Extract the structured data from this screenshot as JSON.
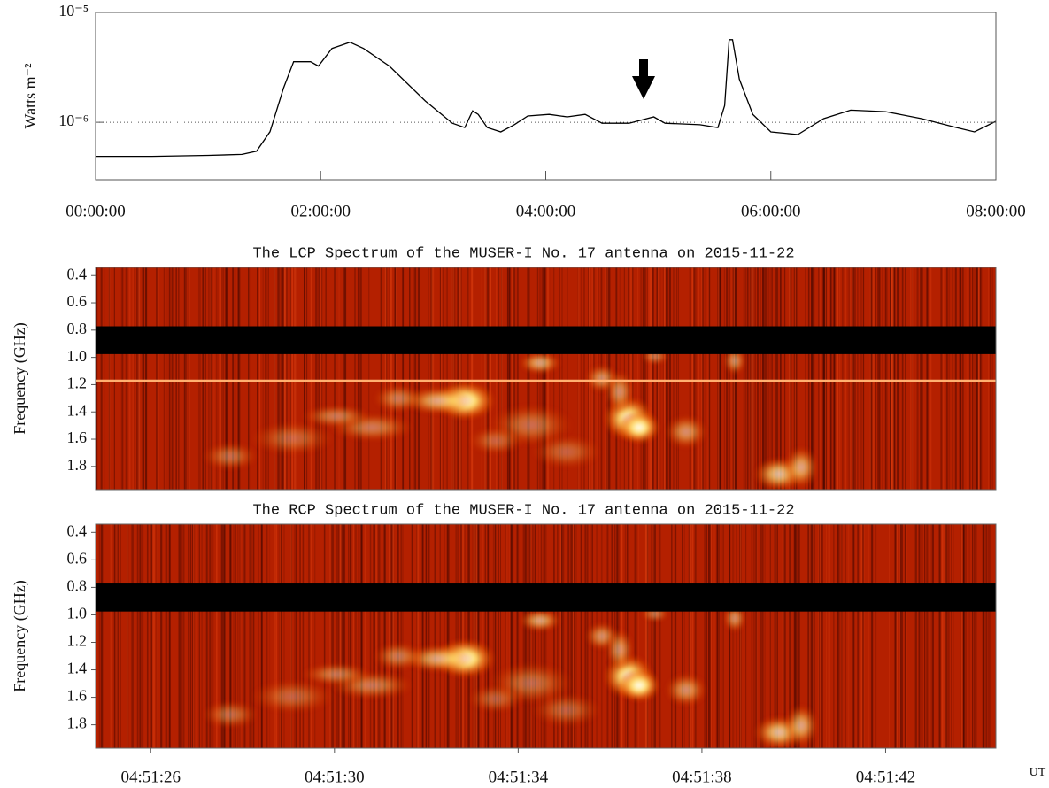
{
  "chart_data": [
    {
      "type": "line",
      "ylabel": "Watts m⁻²",
      "log_y": true,
      "color": "#000000",
      "ylim": [
        3e-07,
        1e-05
      ],
      "yticks": [
        {
          "value": 1e-06,
          "label": "10⁻⁶"
        },
        {
          "value": 1e-05,
          "label": "10⁻⁵"
        }
      ],
      "reference_line": 1e-06,
      "xlim": [
        0,
        8
      ],
      "xticks": [
        {
          "value": 0,
          "label": "00:00:00"
        },
        {
          "value": 2,
          "label": "02:00:00"
        },
        {
          "value": 4,
          "label": "04:00:00"
        },
        {
          "value": 6,
          "label": "06:00:00"
        },
        {
          "value": 8,
          "label": "08:00:00"
        }
      ],
      "x": [
        0,
        0.5,
        1.0,
        1.3,
        1.43,
        1.55,
        1.67,
        1.76,
        1.91,
        1.98,
        2.1,
        2.26,
        2.38,
        2.61,
        2.93,
        3.17,
        3.28,
        3.35,
        3.4,
        3.48,
        3.6,
        3.72,
        3.84,
        4.03,
        4.19,
        4.35,
        4.5,
        4.74,
        4.96,
        5.06,
        5.37,
        5.53,
        5.59,
        5.63,
        5.66,
        5.72,
        5.84,
        6.0,
        6.24,
        6.47,
        6.71,
        7.02,
        7.34,
        7.65,
        7.81,
        8.0
      ],
      "values": [
        4.9e-07,
        4.9e-07,
        5e-07,
        5.1e-07,
        5.45e-07,
        8.2e-07,
        2.05e-06,
        3.56e-06,
        3.56e-06,
        3.25e-06,
        4.7e-06,
        5.35e-06,
        4.7e-06,
        3.25e-06,
        1.56e-06,
        9.8e-07,
        8.95e-07,
        1.27e-06,
        1.18e-06,
        8.95e-07,
        8.17e-07,
        9.5e-07,
        1.14e-06,
        1.18e-06,
        1.12e-06,
        1.18e-06,
        9.8e-07,
        9.8e-07,
        1.12e-06,
        9.8e-07,
        9.5e-07,
        8.95e-07,
        1.42e-06,
        5.65e-06,
        5.65e-06,
        2.47e-06,
        1.18e-06,
        8.17e-07,
        7.73e-07,
        1.08e-06,
        1.29e-06,
        1.25e-06,
        1.08e-06,
        8.95e-07,
        8.17e-07,
        1.02e-06
      ]
    },
    {
      "type": "spectrogram",
      "title": "The LCP Spectrum of the MUSER-I No. 17 antenna on 2015-11-22",
      "ylabel": "Frequency (GHz)",
      "ylim": [
        0.34,
        1.97
      ],
      "yticks": [
        0.4,
        0.6,
        0.8,
        {
          "value": 1,
          "label": "1.0"
        },
        1.2,
        1.4,
        1.6,
        1.8
      ]
    },
    {
      "type": "spectrogram",
      "title": "The RCP Spectrum of the MUSER-I No. 17 antenna on 2015-11-22",
      "ylabel": "Frequency (GHz)",
      "ylim": [
        0.34,
        1.97
      ],
      "yticks": [
        0.4,
        0.6,
        0.8,
        {
          "value": 1,
          "label": "1.0"
        },
        1.2,
        1.4,
        1.6,
        1.8
      ],
      "xlabel": "UT",
      "xlim": [
        24.8,
        44.4
      ],
      "xticks": [
        {
          "value": 26,
          "label": "04:51:26"
        },
        {
          "value": 30,
          "label": "04:51:30"
        },
        {
          "value": 34,
          "label": "04:51:34"
        },
        {
          "value": 38,
          "label": "04:51:38"
        },
        {
          "value": 42,
          "label": "04:51:42"
        }
      ]
    }
  ]
}
